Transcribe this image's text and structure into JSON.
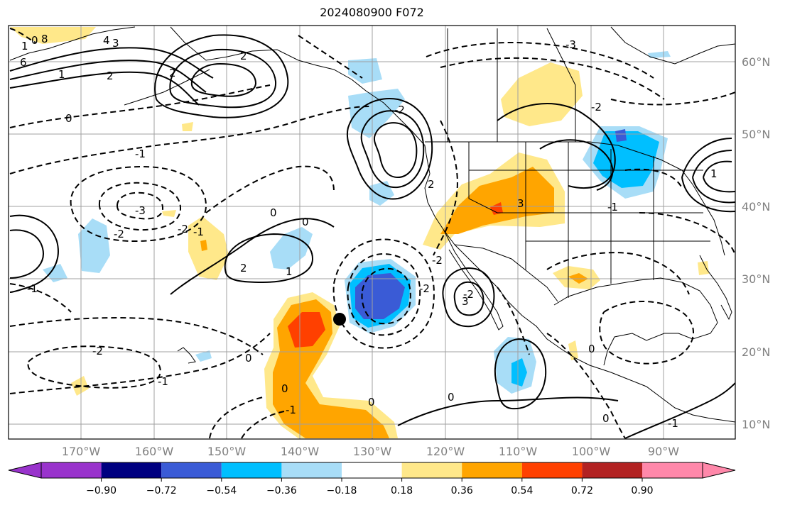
{
  "title": "2024080900 F072",
  "map": {
    "projection": "lat-lon",
    "lon_range": [
      "180°W",
      "80°W"
    ],
    "lat_range": [
      "8°N",
      "65°N"
    ],
    "lon_ticks": [
      "170°W",
      "160°W",
      "150°W",
      "140°W",
      "130°W",
      "120°W",
      "110°W",
      "100°W",
      "90°W"
    ],
    "lat_ticks": [
      "60°N",
      "50°N",
      "40°N",
      "30°N",
      "20°N",
      "10°N"
    ],
    "grid": true,
    "marker": {
      "lon": "134.5°W",
      "lat": "24.5°N",
      "color": "#000000"
    }
  },
  "colorbar": {
    "ticks": [
      "−0.90",
      "−0.72",
      "−0.54",
      "−0.36",
      "−0.18",
      "0.18",
      "0.36",
      "0.54",
      "0.72",
      "0.90"
    ],
    "colors": [
      "#9933cc",
      "#000080",
      "#3a5bd6",
      "#00bfff",
      "#a8ddf7",
      "#ffffff",
      "#ffe88a",
      "#ffa500",
      "#ff4000",
      "#b22222",
      "#ff88aa"
    ],
    "extend": "both"
  },
  "contour_labels": [
    {
      "text": "1"
    },
    {
      "text": "0"
    },
    {
      "text": "6"
    },
    {
      "text": "8"
    },
    {
      "text": "4"
    },
    {
      "text": "3"
    },
    {
      "text": "2"
    },
    {
      "text": "1"
    },
    {
      "text": "0"
    },
    {
      "text": "-1"
    },
    {
      "text": "-2"
    },
    {
      "text": "-3"
    },
    {
      "text": "-2"
    },
    {
      "text": "-1"
    },
    {
      "text": "0"
    },
    {
      "text": "0"
    },
    {
      "text": "2"
    },
    {
      "text": "1"
    },
    {
      "text": "-1"
    },
    {
      "text": "-2"
    },
    {
      "text": "-1"
    },
    {
      "text": "0"
    },
    {
      "text": "-1"
    },
    {
      "text": "0"
    },
    {
      "text": "0"
    },
    {
      "text": "2"
    },
    {
      "text": "-2"
    },
    {
      "text": "3"
    },
    {
      "text": "-3"
    },
    {
      "text": "-2"
    },
    {
      "text": "2"
    },
    {
      "text": "-2"
    },
    {
      "text": "0"
    },
    {
      "text": "-1"
    },
    {
      "text": "0"
    },
    {
      "text": "-1"
    },
    {
      "text": "0"
    },
    {
      "text": "-2"
    },
    {
      "text": "2"
    },
    {
      "text": "3"
    },
    {
      "text": "-2"
    },
    {
      "text": "1"
    }
  ],
  "colors": {
    "land_outline": "#000000",
    "grid": "#a0a0a0",
    "contour": "#000000"
  }
}
